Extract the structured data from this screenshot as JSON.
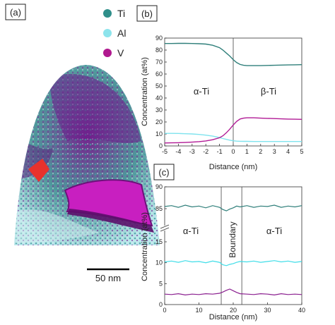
{
  "panels": {
    "a": "(a)",
    "b": "(b)",
    "c": "(c)"
  },
  "legend": [
    {
      "label": "Ti",
      "color": "#2f8f8a"
    },
    {
      "label": "Al",
      "color": "#8de4ec"
    },
    {
      "label": "V",
      "color": "#b0198f"
    }
  ],
  "scale_bar": "50 nm",
  "chart_data": [
    {
      "type": "line",
      "panel": "(b)",
      "xlabel": "Distance (nm)",
      "ylabel": "Concentration (at%)",
      "xlim": [
        -5,
        5
      ],
      "ylim": [
        0,
        90
      ],
      "xticks": [
        -5,
        -4,
        -3,
        -2,
        -1,
        0,
        1,
        2,
        3,
        4,
        5
      ],
      "yticks": [
        0,
        10,
        20,
        30,
        40,
        50,
        60,
        70,
        80,
        90
      ],
      "boundary_x": 0,
      "annotations": [
        "α-Ti",
        "β-Ti"
      ],
      "x": [
        -5,
        -4.5,
        -4,
        -3.5,
        -3,
        -2.5,
        -2,
        -1.5,
        -1,
        -0.75,
        -0.5,
        -0.25,
        0,
        0.25,
        0.5,
        0.75,
        1,
        1.5,
        2,
        2.5,
        3,
        3.5,
        4,
        4.5,
        5
      ],
      "series": [
        {
          "color": "#2f7f7a",
          "values": [
            85.5,
            85.5,
            85.6,
            85.6,
            85.5,
            85.3,
            85,
            84,
            82,
            80,
            77.5,
            75,
            72,
            69.5,
            68,
            67.3,
            67,
            67,
            67,
            67.2,
            67.3,
            67.5,
            67.6,
            67.7,
            67.8
          ]
        },
        {
          "color": "#7fe3ee",
          "values": [
            10.5,
            10.5,
            10.4,
            10.2,
            10,
            9.6,
            9,
            8.2,
            7,
            6.2,
            5.5,
            4.8,
            4.3,
            4,
            3.9,
            3.8,
            3.8,
            3.7,
            3.7,
            3.7,
            3.7,
            3.7,
            3.7,
            3.7,
            3.7
          ]
        },
        {
          "color": "#b11a95",
          "values": [
            2.5,
            2.6,
            2.7,
            2.9,
            3.2,
            3.6,
            4.2,
            5.2,
            6.8,
            8.5,
            11,
            14,
            17.5,
            20.5,
            22.5,
            23.2,
            23.5,
            23.5,
            23.2,
            23,
            22.8,
            22.6,
            22.4,
            22.3,
            22.2
          ]
        }
      ]
    },
    {
      "type": "line",
      "panel": "(c)",
      "xlabel": "Distance (nm)",
      "ylabel": "Concentration (at%)",
      "xlim": [
        0,
        40
      ],
      "xticks": [
        0,
        10,
        20,
        30,
        40
      ],
      "yticks": [
        0,
        5,
        10,
        15,
        85,
        90
      ],
      "ybreak": [
        15,
        80
      ],
      "boundaries_x": [
        16.5,
        22.5
      ],
      "annotations": [
        "α-Ti",
        "Boundary",
        "α-Ti"
      ],
      "x": [
        0,
        2,
        4,
        6,
        8,
        10,
        12,
        14,
        16,
        17,
        18,
        19,
        20,
        21,
        22,
        24,
        26,
        28,
        30,
        32,
        34,
        36,
        38,
        40
      ],
      "series": [
        {
          "color": "#2f7f7a",
          "values": [
            85.5,
            85.7,
            85.3,
            85.8,
            85.4,
            85.6,
            85.2,
            85.7,
            85.3,
            84.8,
            84.5,
            84.9,
            85.2,
            85.6,
            85.4,
            85.7,
            85.3,
            85.6,
            85.5,
            85.8,
            85.3,
            85.6,
            85.4,
            85.7
          ]
        },
        {
          "color": "#3fdde8",
          "values": [
            10.2,
            10.4,
            10.1,
            10.5,
            10.2,
            10.3,
            10.0,
            10.4,
            10.1,
            9.5,
            9.3,
            9.6,
            9.8,
            10.1,
            10.3,
            10.2,
            10.4,
            10.1,
            10.3,
            10.5,
            10.2,
            10.4,
            10.1,
            10.3
          ]
        },
        {
          "color": "#8a1e8f",
          "values": [
            2.5,
            2.4,
            2.6,
            2.3,
            2.5,
            2.4,
            2.6,
            2.5,
            2.7,
            3.0,
            3.4,
            3.7,
            3.3,
            2.9,
            2.6,
            2.5,
            2.4,
            2.6,
            2.5,
            2.3,
            2.6,
            2.4,
            2.5,
            2.4
          ]
        }
      ]
    }
  ]
}
